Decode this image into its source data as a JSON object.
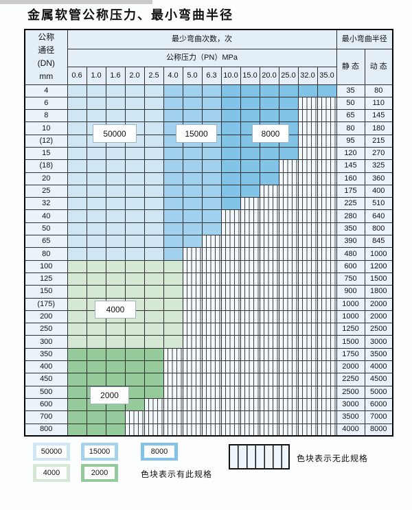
{
  "page": {
    "title": "金属软管公称压力、最小弯曲半径"
  },
  "table": {
    "corner_header": [
      "公称",
      "通径",
      "(DN)",
      "mm"
    ],
    "bend_cycles_header": "最少弯曲次数，次",
    "pressure_header": "公称压力（PN）MPa",
    "pressure_columns": [
      "0.6",
      "1.0",
      "1.6",
      "2.0",
      "2.5",
      "4.0",
      "5.0",
      "6.3",
      "10.0",
      "15.0",
      "20.0",
      "25.0",
      "32.0",
      "35.0"
    ],
    "radius_header": "最小弯曲半径",
    "static_header": "静 态",
    "dynamic_header": "动 态",
    "rows": [
      {
        "dn": "4",
        "colored": 14,
        "zone": "blue",
        "static": "35",
        "dynamic": "80"
      },
      {
        "dn": "6",
        "colored": 12,
        "zone": "blue",
        "static": "50",
        "dynamic": "110"
      },
      {
        "dn": "8",
        "colored": 12,
        "zone": "blue",
        "static": "65",
        "dynamic": "145"
      },
      {
        "dn": "10",
        "colored": 12,
        "zone": "blue",
        "static": "80",
        "dynamic": "180"
      },
      {
        "dn": "(12)",
        "colored": 12,
        "zone": "blue",
        "static": "95",
        "dynamic": "215"
      },
      {
        "dn": "15",
        "colored": 12,
        "zone": "blue",
        "static": "120",
        "dynamic": "270"
      },
      {
        "dn": "(18)",
        "colored": 11,
        "zone": "blue",
        "static": "145",
        "dynamic": "325"
      },
      {
        "dn": "20",
        "colored": 11,
        "zone": "blue",
        "static": "160",
        "dynamic": "360"
      },
      {
        "dn": "25",
        "colored": 10,
        "zone": "blue",
        "static": "175",
        "dynamic": "400"
      },
      {
        "dn": "32",
        "colored": 9,
        "zone": "blue",
        "static": "225",
        "dynamic": "510"
      },
      {
        "dn": "40",
        "colored": 8,
        "zone": "blue",
        "static": "280",
        "dynamic": "640"
      },
      {
        "dn": "50",
        "colored": 8,
        "zone": "blue",
        "static": "350",
        "dynamic": "800"
      },
      {
        "dn": "65",
        "colored": 7,
        "zone": "blue",
        "static": "390",
        "dynamic": "845"
      },
      {
        "dn": "80",
        "colored": 6,
        "zone": "blue",
        "static": "480",
        "dynamic": "1000"
      },
      {
        "dn": "100",
        "colored": 6,
        "zone": "green_light",
        "static": "600",
        "dynamic": "1200"
      },
      {
        "dn": "125",
        "colored": 6,
        "zone": "green_light",
        "static": "750",
        "dynamic": "1500"
      },
      {
        "dn": "150",
        "colored": 6,
        "zone": "green_light",
        "static": "900",
        "dynamic": "1800"
      },
      {
        "dn": "(175)",
        "colored": 6,
        "zone": "green_light",
        "static": "1000",
        "dynamic": "2000"
      },
      {
        "dn": "200",
        "colored": 6,
        "zone": "green_light",
        "static": "1000",
        "dynamic": "2000"
      },
      {
        "dn": "250",
        "colored": 6,
        "zone": "green_light",
        "static": "1250",
        "dynamic": "2500"
      },
      {
        "dn": "300",
        "colored": 6,
        "zone": "green_light",
        "static": "1500",
        "dynamic": "3000"
      },
      {
        "dn": "350",
        "colored": 5,
        "zone": "green_dark",
        "static": "1750",
        "dynamic": "3500"
      },
      {
        "dn": "400",
        "colored": 5,
        "zone": "green_dark",
        "static": "2000",
        "dynamic": "4000"
      },
      {
        "dn": "450",
        "colored": 5,
        "zone": "green_dark",
        "static": "2250",
        "dynamic": "4500"
      },
      {
        "dn": "500",
        "colored": 5,
        "zone": "green_dark",
        "static": "2500",
        "dynamic": "5000"
      },
      {
        "dn": "600",
        "colored": 4,
        "zone": "green_dark",
        "static": "3000",
        "dynamic": "6000"
      },
      {
        "dn": "700",
        "colored": 3,
        "zone": "green_dark",
        "static": "3500",
        "dynamic": "7000"
      },
      {
        "dn": "800",
        "colored": 3,
        "zone": "green_dark",
        "static": "4000",
        "dynamic": "8000"
      }
    ]
  },
  "zone_labels": [
    {
      "text": "50000"
    },
    {
      "text": "15000"
    },
    {
      "text": "8000"
    },
    {
      "text": "4000"
    },
    {
      "text": "2000"
    }
  ],
  "legend": {
    "has_spec_items": [
      {
        "label": "50000",
        "color_key": "blue_light"
      },
      {
        "label": "15000",
        "color_key": "blue_mid"
      },
      {
        "label": "8000",
        "color_key": "blue_dark"
      },
      {
        "label": "4000",
        "color_key": "green_light"
      },
      {
        "label": "2000",
        "color_key": "green_dark"
      }
    ],
    "has_spec_text": "色块表示有此规格",
    "no_spec_text": "色块表示无此规格"
  },
  "colors": {
    "blue_light": "#cfe6f5",
    "blue_mid": "#a3d2ee",
    "blue_dark": "#82c3e8",
    "green_light": "#d4e8d3",
    "green_dark": "#95cb9a",
    "stripe_bg": "#f2f7fc",
    "header_bg": "#e3eef7",
    "side_bg": "#eaf3fa"
  }
}
